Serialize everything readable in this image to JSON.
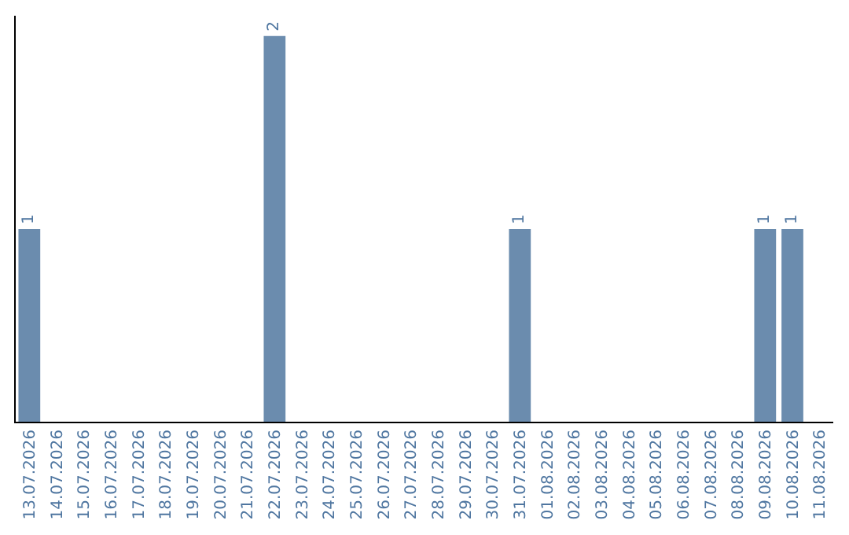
{
  "chart_data": {
    "type": "bar",
    "categories": [
      "13.07.2026",
      "14.07.2026",
      "15.07.2026",
      "16.07.2026",
      "17.07.2026",
      "18.07.2026",
      "19.07.2026",
      "20.07.2026",
      "21.07.2026",
      "22.07.2026",
      "23.07.2026",
      "24.07.2026",
      "25.07.2026",
      "26.07.2026",
      "27.07.2026",
      "28.07.2026",
      "29.07.2026",
      "30.07.2026",
      "31.07.2026",
      "01.08.2026",
      "02.08.2026",
      "03.08.2026",
      "04.08.2026",
      "05.08.2026",
      "06.08.2026",
      "07.08.2026",
      "08.08.2026",
      "09.08.2026",
      "10.08.2026",
      "11.08.2026"
    ],
    "values": [
      1,
      0,
      0,
      0,
      0,
      0,
      0,
      0,
      0,
      2,
      0,
      0,
      0,
      0,
      0,
      0,
      0,
      0,
      1,
      0,
      0,
      0,
      0,
      0,
      0,
      0,
      0,
      1,
      1,
      0
    ],
    "value_labels": [
      "1",
      null,
      null,
      null,
      null,
      null,
      null,
      null,
      null,
      "2",
      null,
      null,
      null,
      null,
      null,
      null,
      null,
      null,
      "1",
      null,
      null,
      null,
      null,
      null,
      null,
      null,
      null,
      "1",
      "1",
      null
    ],
    "color": "#6b8cae",
    "grid": false,
    "legend": false
  }
}
